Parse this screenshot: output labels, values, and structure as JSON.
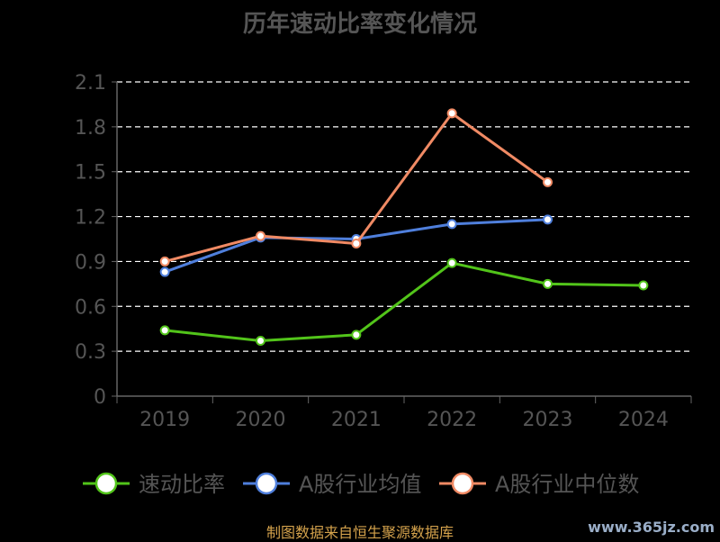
{
  "chart_data": {
    "type": "line",
    "title": "历年速动比率变化情况",
    "categories": [
      "2019",
      "2020",
      "2021",
      "2022",
      "2023",
      "2024"
    ],
    "y_ticks": [
      "0",
      "0.3",
      "0.6",
      "0.9",
      "1.2",
      "1.5",
      "1.8",
      "2.1"
    ],
    "ylim": [
      0,
      2.1
    ],
    "grid": true,
    "legend_position": "bottom",
    "series": [
      {
        "name": "速动比率",
        "color": "#52c41a",
        "values": [
          0.44,
          0.37,
          0.41,
          0.89,
          0.75,
          0.74
        ]
      },
      {
        "name": "A股行业均值",
        "color": "#4f7fdc",
        "values": [
          0.83,
          1.06,
          1.05,
          1.15,
          1.18,
          null
        ]
      },
      {
        "name": "A股行业中位数",
        "color": "#f08a64",
        "values": [
          0.9,
          1.07,
          1.02,
          1.89,
          1.43,
          null
        ]
      }
    ]
  },
  "footer": {
    "source": "制图数据来自恒生聚源数据库",
    "watermark": "www.365jz.com"
  }
}
